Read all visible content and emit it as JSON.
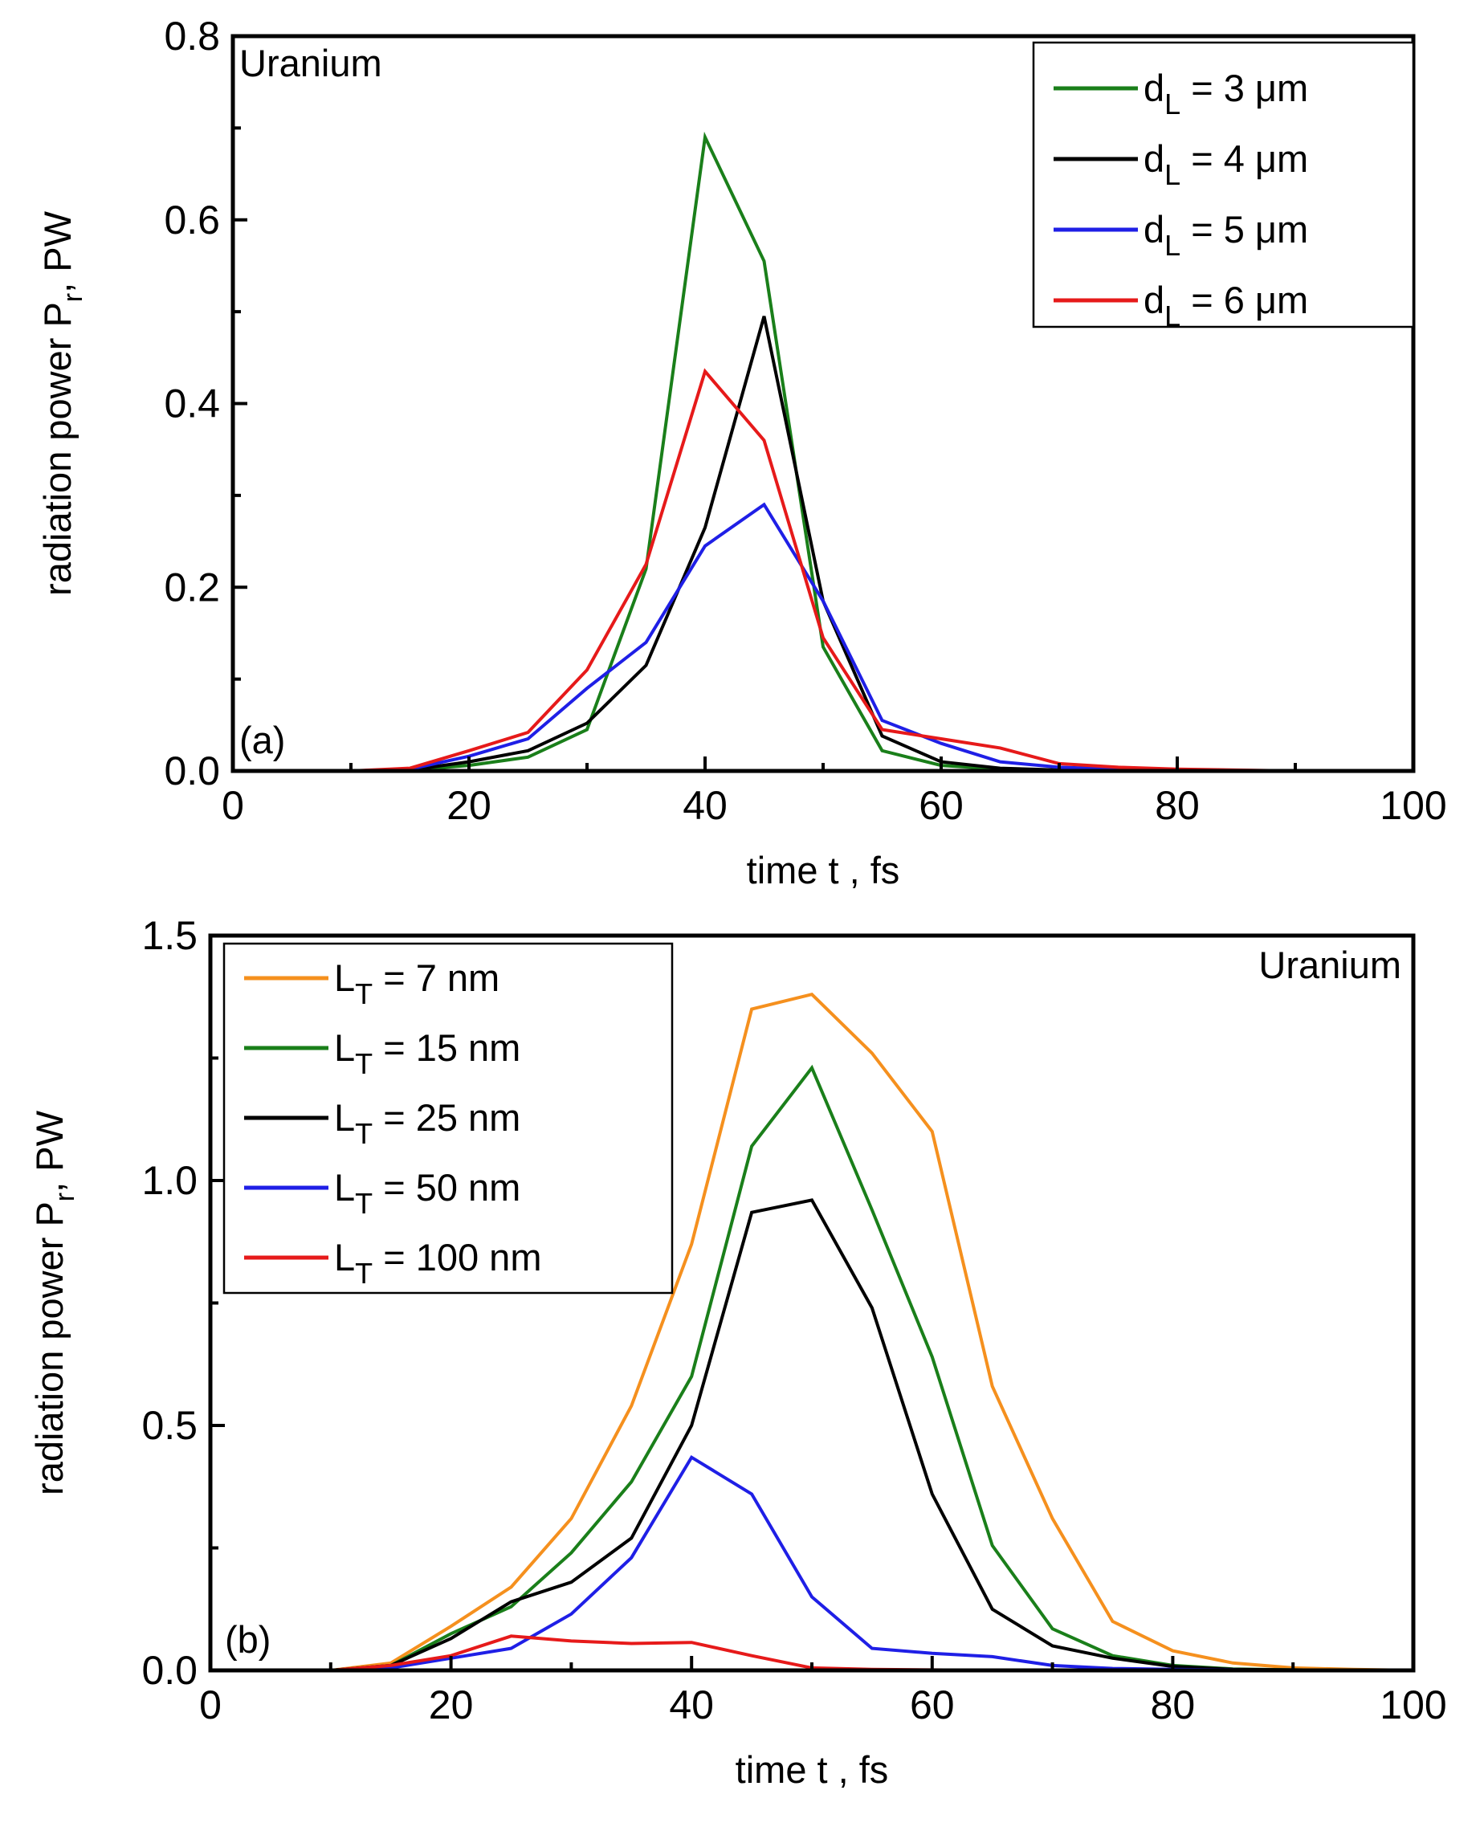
{
  "chart_data": [
    {
      "type": "line",
      "panel_label": "(a)",
      "title": "Uranium",
      "xlabel": "time t , fs",
      "ylabel": "radiation power P",
      "ylabel_sub": "r",
      "ylabel_unit": ", PW",
      "xlim": [
        0,
        100
      ],
      "ylim": [
        0,
        0.8
      ],
      "xticks": [
        0,
        20,
        40,
        60,
        80,
        100
      ],
      "xtick_labels": [
        "0",
        "20",
        "40",
        "60",
        "80",
        "100"
      ],
      "yticks": [
        0.0,
        0.2,
        0.4,
        0.6,
        0.8
      ],
      "ytick_labels": [
        "0.0",
        "0.2",
        "0.4",
        "0.6",
        "0.8"
      ],
      "legend_position": "top-right",
      "x": [
        0,
        5,
        10,
        15,
        20,
        25,
        30,
        35,
        40,
        45,
        50,
        55,
        60,
        65,
        70,
        75,
        80,
        85,
        90,
        95,
        100
      ],
      "series": [
        {
          "name": "d_L = 3 μm",
          "legend_var": "d",
          "legend_sub": "L",
          "legend_rest": " = 3 μm",
          "color": "#1a7f1a",
          "values": [
            0,
            0,
            0,
            0.001,
            0.006,
            0.015,
            0.045,
            0.22,
            0.69,
            0.555,
            0.135,
            0.022,
            0.006,
            0.002,
            0.001,
            0,
            0,
            0,
            0,
            0,
            0
          ]
        },
        {
          "name": "d_L = 4 μm",
          "legend_var": "d",
          "legend_sub": "L",
          "legend_rest": " = 4 μm",
          "color": "#000000",
          "values": [
            0,
            0,
            0,
            0.001,
            0.01,
            0.022,
            0.052,
            0.115,
            0.265,
            0.495,
            0.185,
            0.038,
            0.01,
            0.003,
            0.001,
            0,
            0,
            0,
            0,
            0,
            0
          ]
        },
        {
          "name": "d_L = 5 μm",
          "legend_var": "d",
          "legend_sub": "L",
          "legend_rest": " = 5 μm",
          "color": "#1f1fe6",
          "values": [
            0,
            0,
            0,
            0.002,
            0.016,
            0.035,
            0.09,
            0.14,
            0.245,
            0.29,
            0.185,
            0.055,
            0.03,
            0.01,
            0.004,
            0.002,
            0.001,
            0,
            0,
            0,
            0
          ]
        },
        {
          "name": "d_L = 6 μm",
          "legend_var": "d",
          "legend_sub": "L",
          "legend_rest": " = 6 μm",
          "color": "#e61a1a",
          "values": [
            0,
            0,
            0,
            0.003,
            0.022,
            0.042,
            0.11,
            0.225,
            0.435,
            0.36,
            0.145,
            0.045,
            0.035,
            0.025,
            0.008,
            0.004,
            0.002,
            0.001,
            0,
            0,
            0
          ]
        }
      ]
    },
    {
      "type": "line",
      "panel_label": "(b)",
      "title": "Uranium",
      "xlabel": "time t , fs",
      "ylabel": "radiation power P",
      "ylabel_sub": "r",
      "ylabel_unit": ", PW",
      "xlim": [
        0,
        100
      ],
      "ylim": [
        0,
        1.5
      ],
      "xticks": [
        0,
        20,
        40,
        60,
        80,
        100
      ],
      "xtick_labels": [
        "0",
        "20",
        "40",
        "60",
        "80",
        "100"
      ],
      "yticks": [
        0.0,
        0.5,
        1.0,
        1.5
      ],
      "ytick_labels": [
        "0.0",
        "0.5",
        "1.0",
        "1.5"
      ],
      "legend_position": "top-left",
      "x": [
        0,
        5,
        10,
        15,
        20,
        25,
        30,
        35,
        40,
        45,
        50,
        55,
        60,
        65,
        70,
        75,
        80,
        85,
        90,
        95,
        100
      ],
      "series": [
        {
          "name": "L_T = 7 nm",
          "legend_var": "L",
          "legend_sub": "T",
          "legend_rest": " = 7 nm",
          "color": "#f5901e",
          "values": [
            0,
            0,
            0,
            0.015,
            0.09,
            0.17,
            0.31,
            0.54,
            0.87,
            1.35,
            1.38,
            1.26,
            1.1,
            0.58,
            0.31,
            0.1,
            0.04,
            0.015,
            0.005,
            0.002,
            0
          ]
        },
        {
          "name": "L_T = 15 nm",
          "legend_var": "L",
          "legend_sub": "T",
          "legend_rest": " = 15 nm",
          "color": "#1a7f1a",
          "values": [
            0,
            0,
            0,
            0.01,
            0.075,
            0.13,
            0.24,
            0.385,
            0.6,
            1.07,
            1.23,
            0.94,
            0.64,
            0.255,
            0.085,
            0.03,
            0.01,
            0.003,
            0.001,
            0,
            0
          ]
        },
        {
          "name": "L_T = 25 nm",
          "legend_var": "L",
          "legend_sub": "T",
          "legend_rest": " = 25 nm",
          "color": "#000000",
          "values": [
            0,
            0,
            0,
            0.01,
            0.065,
            0.14,
            0.18,
            0.27,
            0.5,
            0.935,
            0.96,
            0.74,
            0.36,
            0.125,
            0.05,
            0.025,
            0.008,
            0.002,
            0.001,
            0,
            0
          ]
        },
        {
          "name": "L_T = 50 nm",
          "legend_var": "L",
          "legend_sub": "T",
          "legend_rest": " = 50 nm",
          "color": "#1f1fe6",
          "values": [
            0,
            0,
            0,
            0.005,
            0.025,
            0.045,
            0.115,
            0.23,
            0.435,
            0.36,
            0.15,
            0.045,
            0.035,
            0.028,
            0.01,
            0.004,
            0.002,
            0.001,
            0,
            0,
            0
          ]
        },
        {
          "name": "L_T = 100 nm",
          "legend_var": "L",
          "legend_sub": "T",
          "legend_rest": " = 100 nm",
          "color": "#e61a1a",
          "values": [
            0,
            0,
            0,
            0.01,
            0.03,
            0.07,
            0.06,
            0.055,
            0.057,
            0.03,
            0.005,
            0.002,
            0.001,
            0,
            0,
            0,
            0,
            0,
            0,
            0,
            0
          ]
        }
      ]
    }
  ]
}
